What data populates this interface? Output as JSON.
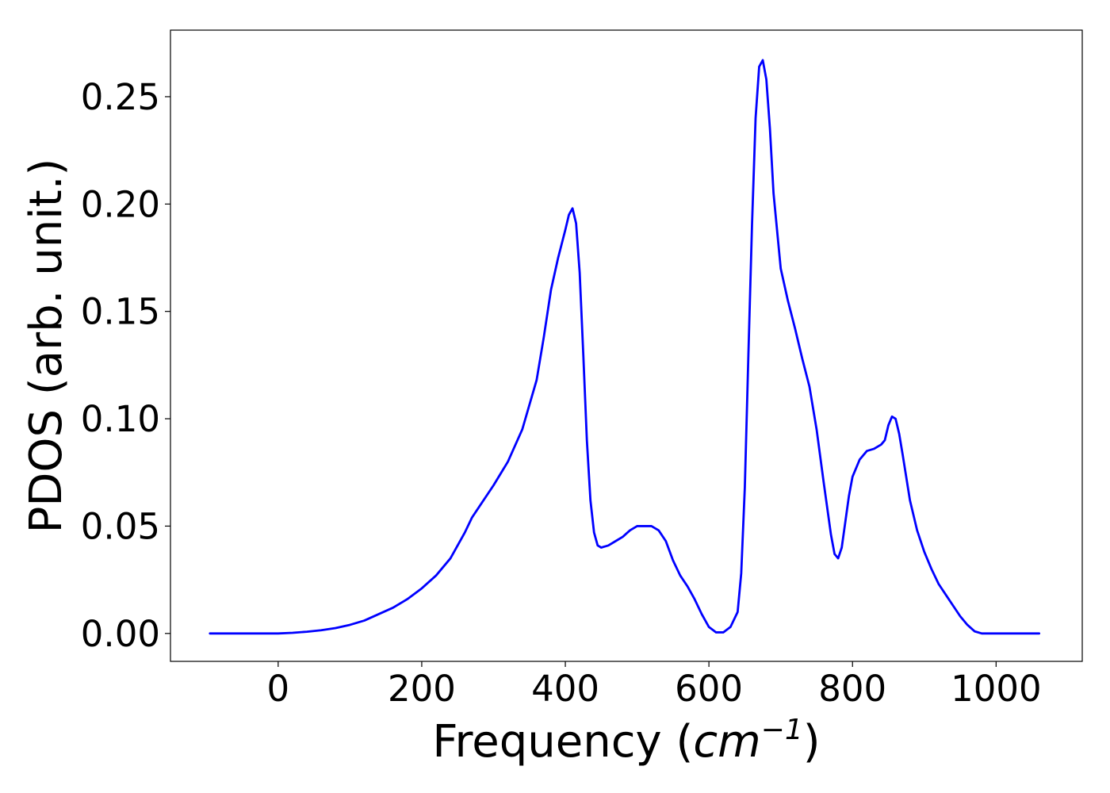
{
  "chart_data": {
    "type": "line",
    "title": "",
    "xlabel": "Frequency (cm⁻¹)",
    "xlabel_parts": {
      "text": "Frequency (",
      "var": "cm",
      "exp": "−1",
      "close": ")"
    },
    "ylabel": "PDOS (arb. unit.)",
    "xlim": [
      -150,
      1120
    ],
    "ylim": [
      -0.013,
      0.281
    ],
    "xticks": [
      0,
      200,
      400,
      600,
      800,
      1000
    ],
    "xtick_labels": [
      "0",
      "200",
      "400",
      "600",
      "800",
      "1000"
    ],
    "yticks": [
      0.0,
      0.05,
      0.1,
      0.15,
      0.2,
      0.25
    ],
    "ytick_labels": [
      "0.00",
      "0.05",
      "0.10",
      "0.15",
      "0.20",
      "0.25"
    ],
    "grid": false,
    "legend": false,
    "series_color": "#0000ff",
    "series": [
      {
        "x": [
          -95,
          -50,
          0,
          20,
          40,
          60,
          80,
          100,
          120,
          140,
          160,
          180,
          200,
          220,
          240,
          260,
          270,
          280,
          300,
          320,
          340,
          360,
          370,
          380,
          390,
          400,
          405,
          410,
          415,
          420,
          425,
          430,
          435,
          440,
          445,
          450,
          460,
          470,
          480,
          490,
          500,
          510,
          520,
          530,
          540,
          550,
          560,
          570,
          580,
          590,
          600,
          610,
          620,
          630,
          640,
          645,
          650,
          655,
          660,
          665,
          670,
          675,
          680,
          685,
          690,
          700,
          710,
          720,
          730,
          740,
          750,
          760,
          770,
          775,
          780,
          785,
          790,
          795,
          800,
          810,
          820,
          830,
          840,
          845,
          850,
          855,
          860,
          865,
          870,
          880,
          890,
          900,
          910,
          920,
          930,
          940,
          950,
          960,
          970,
          980,
          1000,
          1030,
          1060
        ],
        "values": [
          0.0,
          0.0,
          0.0,
          0.0003,
          0.0008,
          0.0015,
          0.0025,
          0.004,
          0.006,
          0.009,
          0.012,
          0.016,
          0.021,
          0.027,
          0.035,
          0.047,
          0.054,
          0.059,
          0.069,
          0.08,
          0.095,
          0.118,
          0.138,
          0.16,
          0.175,
          0.188,
          0.195,
          0.198,
          0.191,
          0.168,
          0.13,
          0.09,
          0.062,
          0.047,
          0.041,
          0.04,
          0.041,
          0.043,
          0.045,
          0.048,
          0.05,
          0.05,
          0.05,
          0.048,
          0.043,
          0.034,
          0.027,
          0.022,
          0.016,
          0.009,
          0.003,
          0.0005,
          0.0005,
          0.003,
          0.01,
          0.028,
          0.068,
          0.13,
          0.19,
          0.24,
          0.264,
          0.267,
          0.258,
          0.235,
          0.205,
          0.17,
          0.155,
          0.142,
          0.128,
          0.115,
          0.095,
          0.07,
          0.046,
          0.037,
          0.035,
          0.04,
          0.052,
          0.064,
          0.073,
          0.081,
          0.085,
          0.086,
          0.088,
          0.09,
          0.097,
          0.101,
          0.1,
          0.093,
          0.083,
          0.062,
          0.048,
          0.038,
          0.03,
          0.023,
          0.018,
          0.013,
          0.008,
          0.004,
          0.001,
          0.0,
          0.0,
          0.0,
          0.0
        ]
      }
    ]
  }
}
